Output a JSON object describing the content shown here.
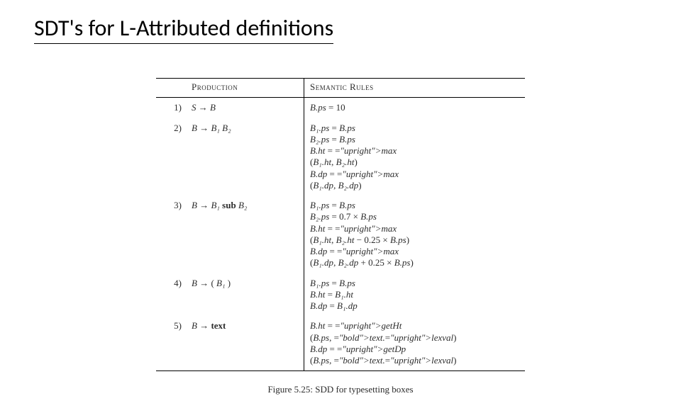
{
  "title": "SDT's for L-Attributed definitions",
  "headers": {
    "prod": "Production",
    "sem": "Semantic Rules"
  },
  "rows": [
    {
      "num": "1)",
      "prod": "S → B",
      "sem": [
        "B.ps = 10"
      ]
    },
    {
      "num": "2)",
      "prod": "B → B₁  B₂",
      "sem": [
        "B₁.ps = B.ps",
        "B₂.ps = B.ps",
        "B.ht = max(B₁.ht, B₂.ht)",
        "B.dp = max(B₁.dp, B₂.dp)"
      ]
    },
    {
      "num": "3)",
      "prod": "B → B₁ sub B₂",
      "sem": [
        "B₁.ps = B.ps",
        "B₂.ps = 0.7 × B.ps",
        "B.ht = max(B₁.ht, B₂.ht − 0.25 × B.ps)",
        "B.dp = max(B₁.dp, B₂.dp + 0.25 × B.ps)"
      ]
    },
    {
      "num": "4)",
      "prod": "B → ( B₁ )",
      "sem": [
        "B₁.ps = B.ps",
        "B.ht = B₁.ht",
        "B.dp = B₁.dp"
      ]
    },
    {
      "num": "5)",
      "prod": "B → text",
      "sem": [
        "B.ht = getHt(B.ps, text.lexval)",
        "B.dp = getDp(B.ps, text.lexval)"
      ]
    }
  ],
  "caption": "Figure 5.25: SDD for typesetting boxes",
  "style": {
    "slide_width": 960,
    "slide_height": 540,
    "background": "#ffffff",
    "title_font": "Calibri",
    "title_fontsize": 32,
    "body_font": "Times New Roman",
    "body_fontsize": 13,
    "rule_color": "#000000",
    "text_color": "#2c2c2c"
  }
}
